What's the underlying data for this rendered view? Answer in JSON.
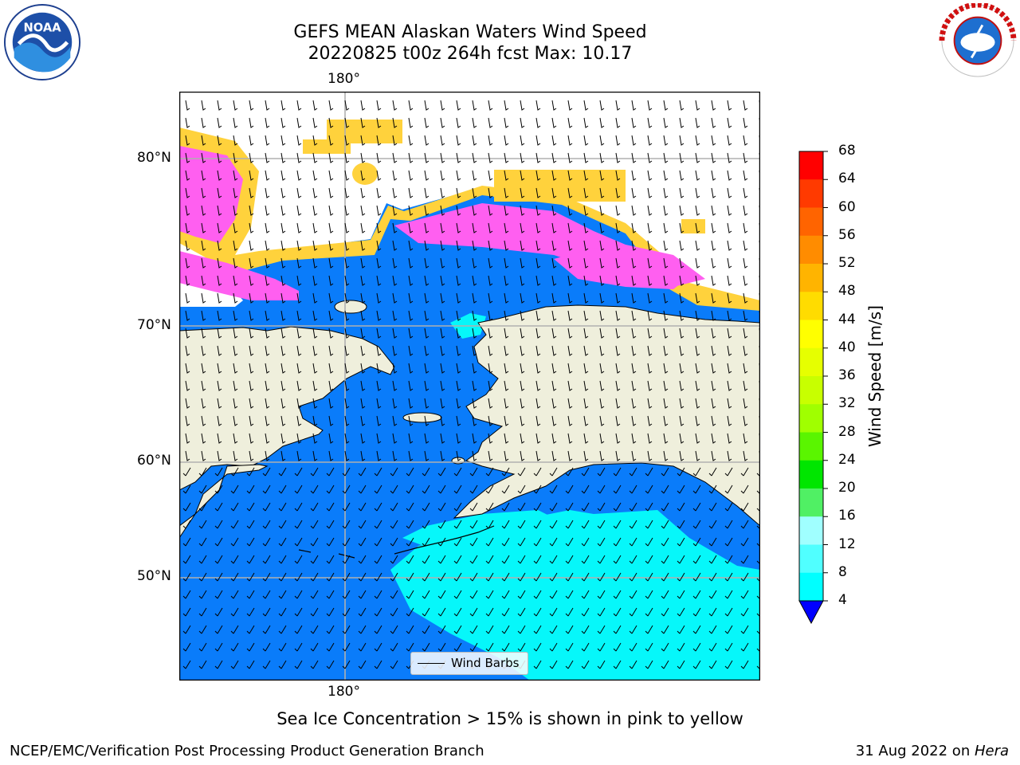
{
  "header": {
    "title_line1": "GEFS MEAN Alaskan Waters Wind Speed",
    "title_line2": "20220825 t00z 264h fcst   Max: 10.17"
  },
  "logos": {
    "left": {
      "icon": "noaa-logo",
      "text": "NOAA"
    },
    "right": {
      "icon": "nws-logo",
      "text": "NATIONAL WEATHER SERVICE"
    }
  },
  "map": {
    "lon_label_top": "180°",
    "lon_label_bottom": "180°",
    "lat_labels": [
      "80°N",
      "70°N",
      "60°N",
      "50°N"
    ],
    "colors": {
      "land": "#efefdc",
      "ocean": "#0a7cfa",
      "ice_pink": "#ff5ff0",
      "ice_yellow": "#ffd23c",
      "fast_wind": "#06f7fa",
      "grid": "#b0b0b0"
    }
  },
  "colorbar": {
    "label": "Wind Speed [m/s]",
    "ticks": [
      "68",
      "64",
      "60",
      "56",
      "52",
      "48",
      "44",
      "40",
      "36",
      "32",
      "28",
      "24",
      "20",
      "16",
      "12",
      "8",
      "4"
    ],
    "colors": [
      "#ff0000",
      "#ff3a00",
      "#ff6400",
      "#ff8c00",
      "#ffb400",
      "#ffdc00",
      "#ffff00",
      "#e6ff00",
      "#c8ff00",
      "#a0ff00",
      "#5af500",
      "#00e600",
      "#50f064",
      "#a0ffff",
      "#50ffff",
      "#00ffff",
      "#0a7cfa"
    ],
    "under_color": "#0000ff"
  },
  "legend": {
    "label": "Wind Barbs"
  },
  "note": "Sea Ice Concentration > 15% is shown in pink to yellow",
  "footer": {
    "left": "NCEP/EMC/Verification Post Processing Product Generation Branch",
    "right_prefix": "31 Aug 2022 on ",
    "right_host": "Hera"
  }
}
